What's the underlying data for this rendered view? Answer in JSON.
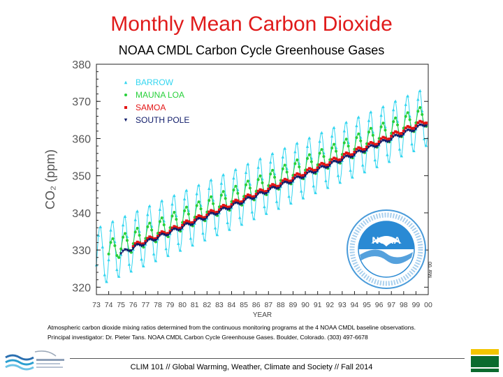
{
  "slide": {
    "title": "Monthly Mean Carbon Dioxide",
    "caption_line1": "Atmospheric carbon dioxide mixing ratios determined from the continuous monitoring programs at the 4 NOAA CMDL baseline observations.",
    "caption_line2": "Principal investigator: Dr. Pieter Tans. NOAA CMDL Carbon Cycle Greenhouse Gases. Boulder, Colorado. (303) 497-6678",
    "footer": "CLIM 101 // Global Warming, Weather, Climate and Society // Fall 2014",
    "plot_credit": "Mar '00"
  },
  "colors": {
    "title": "#e01b1b",
    "barrow": "#33d6f0",
    "mauna_loa": "#27d03a",
    "samoa": "#e31515",
    "south_pole": "#101c6a",
    "noaa_blue": "#2a8ad4"
  },
  "chart_data": {
    "type": "line",
    "title": "NOAA CMDL Carbon Cycle Greenhouse Gases",
    "xlabel": "YEAR",
    "ylabel": "CO₂ (ppm)",
    "xlim": [
      1973,
      2000
    ],
    "ylim": [
      318,
      380
    ],
    "x_ticks": [
      "73",
      "74",
      "75",
      "76",
      "77",
      "78",
      "79",
      "80",
      "81",
      "82",
      "83",
      "84",
      "85",
      "86",
      "87",
      "88",
      "89",
      "90",
      "91",
      "92",
      "93",
      "94",
      "95",
      "96",
      "97",
      "98",
      "99",
      "00"
    ],
    "y_ticks": [
      320,
      330,
      340,
      350,
      360,
      370,
      380
    ],
    "legend_position": "top-left",
    "series": [
      {
        "name": "BARROW",
        "marker": "triangle-up",
        "start": 1973,
        "base": 328.8,
        "trend": 1.42,
        "amplitude": 8.0,
        "annual_means": [
          328.8,
          330.2,
          331.6,
          333.0,
          334.4,
          335.8,
          337.2,
          338.6,
          340.0,
          341.4,
          342.8,
          344.2,
          345.7,
          347.1,
          348.5,
          349.9,
          351.3,
          352.7,
          354.1,
          355.5,
          356.9,
          358.3,
          359.7,
          361.1,
          362.6,
          364.0,
          365.4
        ]
      },
      {
        "name": "MAUNA LOA",
        "marker": "circle",
        "start": 1974,
        "base": 330.4,
        "trend": 1.42,
        "amplitude": 3.0,
        "annual_means": [
          330.4,
          331.8,
          333.2,
          334.6,
          336.0,
          337.5,
          338.9,
          340.3,
          341.7,
          343.1,
          344.5,
          345.9,
          347.3,
          348.8,
          350.2,
          351.6,
          353.0,
          354.4,
          355.8,
          357.2,
          358.6,
          360.1,
          361.5,
          362.9,
          364.3,
          365.7
        ]
      },
      {
        "name": "SAMOA",
        "marker": "square",
        "start": 1976,
        "base": 331.8,
        "trend": 1.42,
        "amplitude": 0.6,
        "annual_means": [
          331.8,
          333.2,
          334.6,
          336.0,
          337.5,
          338.9,
          340.3,
          341.7,
          343.1,
          344.5,
          345.9,
          347.3,
          348.7,
          350.2,
          351.6,
          353.0,
          354.4,
          355.8,
          357.2,
          358.6,
          360.0,
          361.5,
          362.9,
          364.3
        ]
      },
      {
        "name": "SOUTH POLE",
        "marker": "triangle-down",
        "start": 1975,
        "base": 329.8,
        "trend": 1.4,
        "amplitude": 0.5,
        "annual_means": [
          329.8,
          331.2,
          332.6,
          334.0,
          335.4,
          336.8,
          338.2,
          339.6,
          341.0,
          342.4,
          343.8,
          345.2,
          346.6,
          348.0,
          349.4,
          350.8,
          352.2,
          353.6,
          355.0,
          356.4,
          357.8,
          359.2,
          360.6,
          362.0,
          363.4
        ]
      }
    ]
  }
}
